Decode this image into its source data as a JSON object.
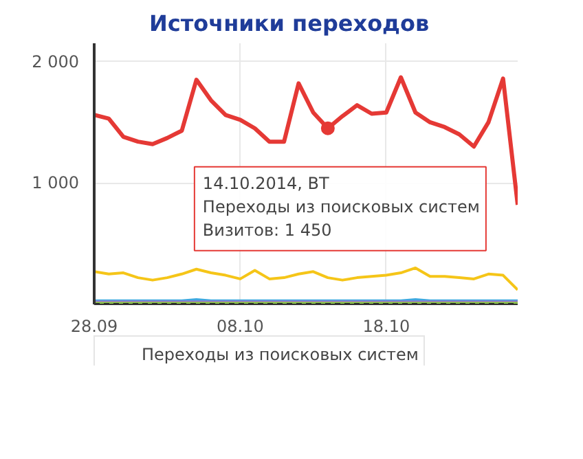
{
  "chart_data": {
    "type": "line",
    "title": "Источники переходов",
    "x": [
      "2014-09-28",
      "2014-09-29",
      "2014-09-30",
      "2014-10-01",
      "2014-10-02",
      "2014-10-03",
      "2014-10-04",
      "2014-10-05",
      "2014-10-06",
      "2014-10-07",
      "2014-10-08",
      "2014-10-09",
      "2014-10-10",
      "2014-10-11",
      "2014-10-12",
      "2014-10-13",
      "2014-10-14",
      "2014-10-15",
      "2014-10-16",
      "2014-10-17",
      "2014-10-18",
      "2014-10-19",
      "2014-10-20",
      "2014-10-21",
      "2014-10-22",
      "2014-10-23",
      "2014-10-24",
      "2014-10-25",
      "2014-10-26",
      "2014-10-27"
    ],
    "series": [
      {
        "name": "Переходы из поисковых систем",
        "color": "#e53935",
        "values": [
          1560,
          1530,
          1380,
          1340,
          1320,
          1370,
          1430,
          1850,
          1680,
          1560,
          1520,
          1450,
          1340,
          1340,
          1820,
          1580,
          1450,
          1550,
          1640,
          1570,
          1580,
          1870,
          1580,
          1500,
          1460,
          1400,
          1300,
          1500,
          1860,
          820
        ]
      },
      {
        "color": "#f5c518",
        "values": [
          270,
          250,
          260,
          220,
          200,
          220,
          250,
          290,
          260,
          240,
          210,
          280,
          210,
          220,
          250,
          270,
          220,
          200,
          220,
          230,
          240,
          260,
          300,
          230,
          230,
          220,
          210,
          250,
          240,
          120
        ]
      },
      {
        "color": "#3fa9e0",
        "values": [
          30,
          30,
          30,
          30,
          30,
          30,
          30,
          40,
          30,
          30,
          30,
          30,
          30,
          30,
          30,
          30,
          30,
          30,
          30,
          30,
          30,
          30,
          40,
          30,
          30,
          30,
          30,
          30,
          30,
          30
        ]
      },
      {
        "color": "#a070d0",
        "values": [
          20,
          20,
          20,
          20,
          20,
          20,
          20,
          20,
          20,
          20,
          20,
          20,
          20,
          20,
          20,
          20,
          20,
          20,
          20,
          20,
          20,
          20,
          20,
          20,
          20,
          20,
          20,
          20,
          20,
          20
        ]
      },
      {
        "color": "#8bc34a",
        "values": [
          10,
          10,
          10,
          10,
          10,
          10,
          10,
          10,
          10,
          10,
          10,
          10,
          10,
          10,
          10,
          10,
          10,
          10,
          10,
          10,
          10,
          10,
          10,
          10,
          10,
          10,
          10,
          10,
          10,
          10
        ]
      },
      {
        "color": "#222222",
        "line_style": "dashed",
        "values": [
          0,
          0,
          0,
          0,
          0,
          0,
          0,
          0,
          0,
          0,
          0,
          0,
          0,
          0,
          0,
          0,
          0,
          0,
          0,
          0,
          0,
          0,
          0,
          0,
          0,
          0,
          0,
          0,
          0,
          0
        ]
      }
    ],
    "xlim": [
      "2014-09-28",
      "2014-10-27"
    ],
    "xticks": [
      {
        "value": "2014-09-28",
        "label": "28.09"
      },
      {
        "value": "2014-10-08",
        "label": "08.10"
      },
      {
        "value": "2014-10-18",
        "label": "18.10"
      }
    ],
    "ylim": [
      0,
      2150
    ],
    "yticks": [
      {
        "value": 1000,
        "label": "1 000"
      },
      {
        "value": 2000,
        "label": "2 000"
      }
    ],
    "grid": true,
    "legend": "bottom",
    "annotations": [
      {
        "text": "14.10.2014, ВТ\nПереходы из поисковых систем\nВизитов: 1 450",
        "x": "2014-10-14",
        "y": 1450
      }
    ]
  }
}
